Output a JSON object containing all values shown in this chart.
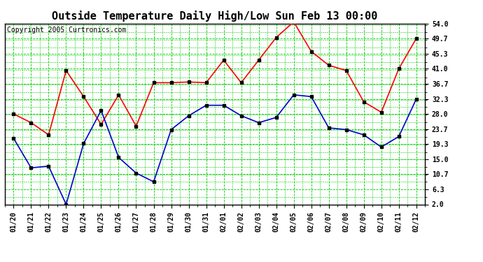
{
  "title": "Outside Temperature Daily High/Low Sun Feb 13 00:00",
  "copyright": "Copyright 2005 Curtronics.com",
  "x_labels": [
    "01/20",
    "01/21",
    "01/22",
    "01/23",
    "01/24",
    "01/25",
    "01/26",
    "01/27",
    "01/28",
    "01/29",
    "01/30",
    "01/31",
    "02/01",
    "02/02",
    "02/03",
    "02/04",
    "02/05",
    "02/06",
    "02/07",
    "02/08",
    "02/09",
    "02/10",
    "02/11",
    "02/12"
  ],
  "high_values": [
    28.0,
    25.5,
    22.0,
    40.5,
    33.0,
    25.0,
    33.5,
    24.5,
    37.0,
    37.0,
    37.2,
    37.0,
    43.5,
    37.0,
    43.5,
    50.0,
    54.5,
    46.0,
    42.0,
    40.5,
    31.5,
    28.5,
    41.0,
    49.7
  ],
  "low_values": [
    21.0,
    12.5,
    13.0,
    2.0,
    19.5,
    29.0,
    15.5,
    11.0,
    8.5,
    23.5,
    27.5,
    30.5,
    30.5,
    27.5,
    25.5,
    27.0,
    33.5,
    33.0,
    24.0,
    23.5,
    22.0,
    18.5,
    21.5,
    32.3
  ],
  "high_color": "#ff0000",
  "low_color": "#0000cc",
  "bg_color": "#ffffff",
  "plot_bg_color": "#ffffff",
  "grid_color": "#00cc00",
  "marker": "s",
  "marker_color": "#000000",
  "marker_size": 3,
  "line_width": 1.2,
  "yticks": [
    2.0,
    6.3,
    10.7,
    15.0,
    19.3,
    23.7,
    28.0,
    32.3,
    36.7,
    41.0,
    45.3,
    49.7,
    54.0
  ],
  "ylim": [
    2.0,
    54.0
  ],
  "title_fontsize": 11,
  "tick_fontsize": 7,
  "copyright_fontsize": 7
}
